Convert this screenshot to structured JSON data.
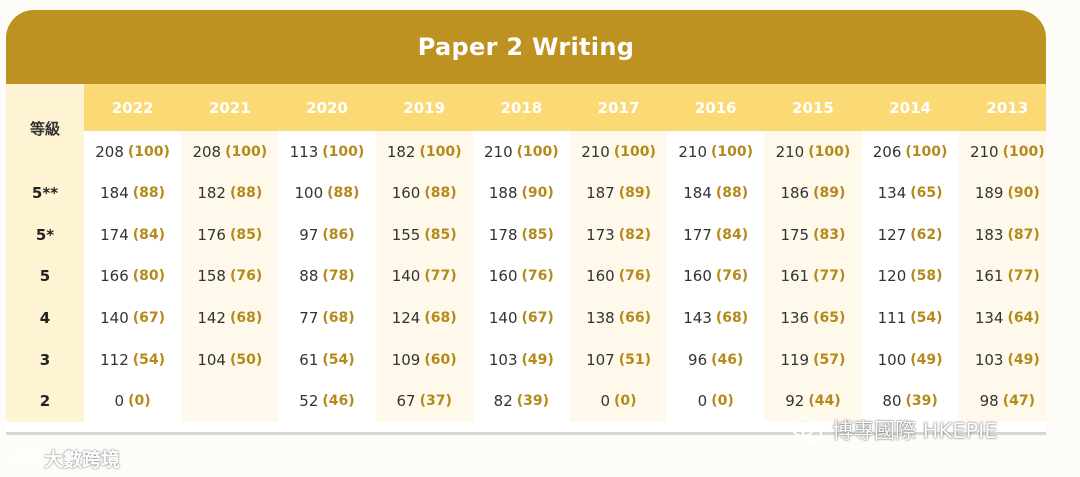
{
  "title": "Paper 2 Writing",
  "grade_header": "等級",
  "years": [
    "2022",
    "2021",
    "2020",
    "2019",
    "2018",
    "2017",
    "2016",
    "2015",
    "2014",
    "2013"
  ],
  "rows": [
    {
      "grade": "",
      "cells": [
        [
          "208",
          "(100)"
        ],
        [
          "208",
          "(100)"
        ],
        [
          "113",
          "(100)"
        ],
        [
          "182",
          "(100)"
        ],
        [
          "210",
          "(100)"
        ],
        [
          "210",
          "(100)"
        ],
        [
          "210",
          "(100)"
        ],
        [
          "210",
          "(100)"
        ],
        [
          "206",
          "(100)"
        ],
        [
          "210",
          "(100)"
        ]
      ]
    },
    {
      "grade": "5**",
      "cells": [
        [
          "184",
          "(88)"
        ],
        [
          "182",
          "(88)"
        ],
        [
          "100",
          "(88)"
        ],
        [
          "160",
          "(88)"
        ],
        [
          "188",
          "(90)"
        ],
        [
          "187",
          "(89)"
        ],
        [
          "184",
          "(88)"
        ],
        [
          "186",
          "(89)"
        ],
        [
          "134",
          "(65)"
        ],
        [
          "189",
          "(90)"
        ]
      ]
    },
    {
      "grade": "5*",
      "cells": [
        [
          "174",
          "(84)"
        ],
        [
          "176",
          "(85)"
        ],
        [
          "97",
          "(86)"
        ],
        [
          "155",
          "(85)"
        ],
        [
          "178",
          "(85)"
        ],
        [
          "173",
          "(82)"
        ],
        [
          "177",
          "(84)"
        ],
        [
          "175",
          "(83)"
        ],
        [
          "127",
          "(62)"
        ],
        [
          "183",
          "(87)"
        ]
      ]
    },
    {
      "grade": "5",
      "cells": [
        [
          "166",
          "(80)"
        ],
        [
          "158",
          "(76)"
        ],
        [
          "88",
          "(78)"
        ],
        [
          "140",
          "(77)"
        ],
        [
          "160",
          "(76)"
        ],
        [
          "160",
          "(76)"
        ],
        [
          "160",
          "(76)"
        ],
        [
          "161",
          "(77)"
        ],
        [
          "120",
          "(58)"
        ],
        [
          "161",
          "(77)"
        ]
      ]
    },
    {
      "grade": "4",
      "cells": [
        [
          "140",
          "(67)"
        ],
        [
          "142",
          "(68)"
        ],
        [
          "77",
          "(68)"
        ],
        [
          "124",
          "(68)"
        ],
        [
          "140",
          "(67)"
        ],
        [
          "138",
          "(66)"
        ],
        [
          "143",
          "(68)"
        ],
        [
          "136",
          "(65)"
        ],
        [
          "111",
          "(54)"
        ],
        [
          "134",
          "(64)"
        ]
      ]
    },
    {
      "grade": "3",
      "cells": [
        [
          "112",
          "(54)"
        ],
        [
          "104",
          "(50)"
        ],
        [
          "61",
          "(54)"
        ],
        [
          "109",
          "(60)"
        ],
        [
          "103",
          "(49)"
        ],
        [
          "107",
          "(51)"
        ],
        [
          "96",
          "(46)"
        ],
        [
          "119",
          "(57)"
        ],
        [
          "100",
          "(49)"
        ],
        [
          "103",
          "(49)"
        ]
      ]
    },
    {
      "grade": "2",
      "cells": [
        [
          "0",
          "(0)"
        ],
        [
          "",
          ""
        ],
        [
          "52",
          "(46)"
        ],
        [
          "67",
          "(37)"
        ],
        [
          "82",
          "(39)"
        ],
        [
          "0",
          "(0)"
        ],
        [
          "0",
          "(0)"
        ],
        [
          "92",
          "(44)"
        ],
        [
          "80",
          "(39)"
        ],
        [
          "98",
          "(47)"
        ]
      ]
    }
  ],
  "watermark_left": "大數跨境",
  "watermark_right": "博專國際 HKEPIE",
  "colors": {
    "header_bar": "#be9220",
    "year_header": "#fbd974",
    "grade_col": "#fef4d3",
    "percent_text": "#b48a1c"
  }
}
